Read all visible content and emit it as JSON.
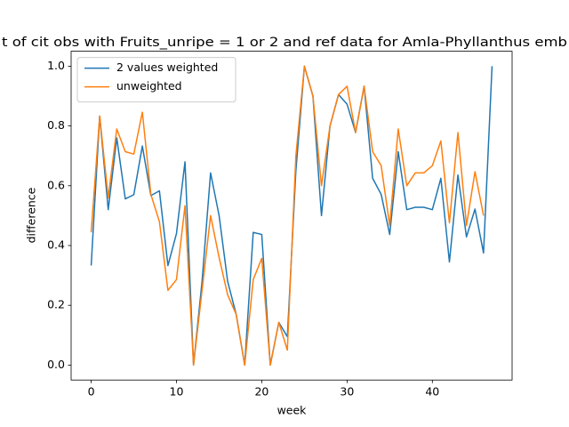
{
  "chart_data": {
    "type": "line",
    "title": "t of cit obs with Fruits_unripe = 1 or 2 and ref data for Amla-Phyllanthus emb",
    "x_label": "week",
    "y_label": "difference",
    "x": [
      0,
      1,
      2,
      3,
      4,
      5,
      6,
      7,
      8,
      9,
      10,
      11,
      12,
      13,
      14,
      15,
      16,
      17,
      18,
      19,
      20,
      21,
      22,
      23,
      24,
      25,
      26,
      27,
      28,
      29,
      30,
      31,
      32,
      33,
      34,
      35,
      36,
      37,
      38,
      39,
      40,
      41,
      42,
      43,
      44,
      45,
      46,
      47
    ],
    "series": [
      {
        "name": "2 values weighted",
        "color": "#1f77b4",
        "values": [
          0.333,
          0.833,
          0.52,
          0.76,
          0.556,
          0.57,
          0.733,
          0.567,
          0.583,
          0.333,
          0.44,
          0.68,
          0.0,
          0.28,
          0.643,
          0.5,
          0.28,
          0.17,
          0.0,
          0.444,
          0.437,
          0.0,
          0.143,
          0.095,
          0.65,
          1.0,
          0.9,
          0.5,
          0.8,
          0.905,
          0.873,
          0.778,
          0.933,
          0.625,
          0.571,
          0.437,
          0.714,
          0.52,
          0.528,
          0.528,
          0.52,
          0.625,
          0.345,
          0.636,
          0.429,
          0.522,
          0.375,
          1.0
        ]
      },
      {
        "name": "unweighted",
        "color": "#ff7f0e",
        "values": [
          0.444,
          0.833,
          0.56,
          0.79,
          0.714,
          0.706,
          0.846,
          0.571,
          0.48,
          0.25,
          0.286,
          0.533,
          0.0,
          0.25,
          0.5,
          0.36,
          0.235,
          0.17,
          0.0,
          0.286,
          0.357,
          0.0,
          0.143,
          0.05,
          0.7,
          1.0,
          0.9,
          0.6,
          0.8,
          0.905,
          0.933,
          0.778,
          0.933,
          0.714,
          0.667,
          0.467,
          0.79,
          0.6,
          0.643,
          0.643,
          0.667,
          0.75,
          0.476,
          0.778,
          0.467,
          0.647,
          0.5,
          null
        ]
      }
    ],
    "xlim": [
      -2.35,
      49.35
    ],
    "xticks": [
      0,
      10,
      20,
      30,
      40
    ],
    "ylim": [
      -0.05,
      1.05
    ],
    "yticks": [
      {
        "value": 0,
        "label": "0.0"
      },
      {
        "value": 0.2,
        "label": "0.2"
      },
      {
        "value": 0.4,
        "label": "0.4"
      },
      {
        "value": 0.6,
        "label": "0.6"
      },
      {
        "value": 0.8,
        "label": "0.8"
      },
      {
        "value": 1.0,
        "label": "1.0"
      }
    ],
    "legend": "upper left",
    "grid": false
  }
}
